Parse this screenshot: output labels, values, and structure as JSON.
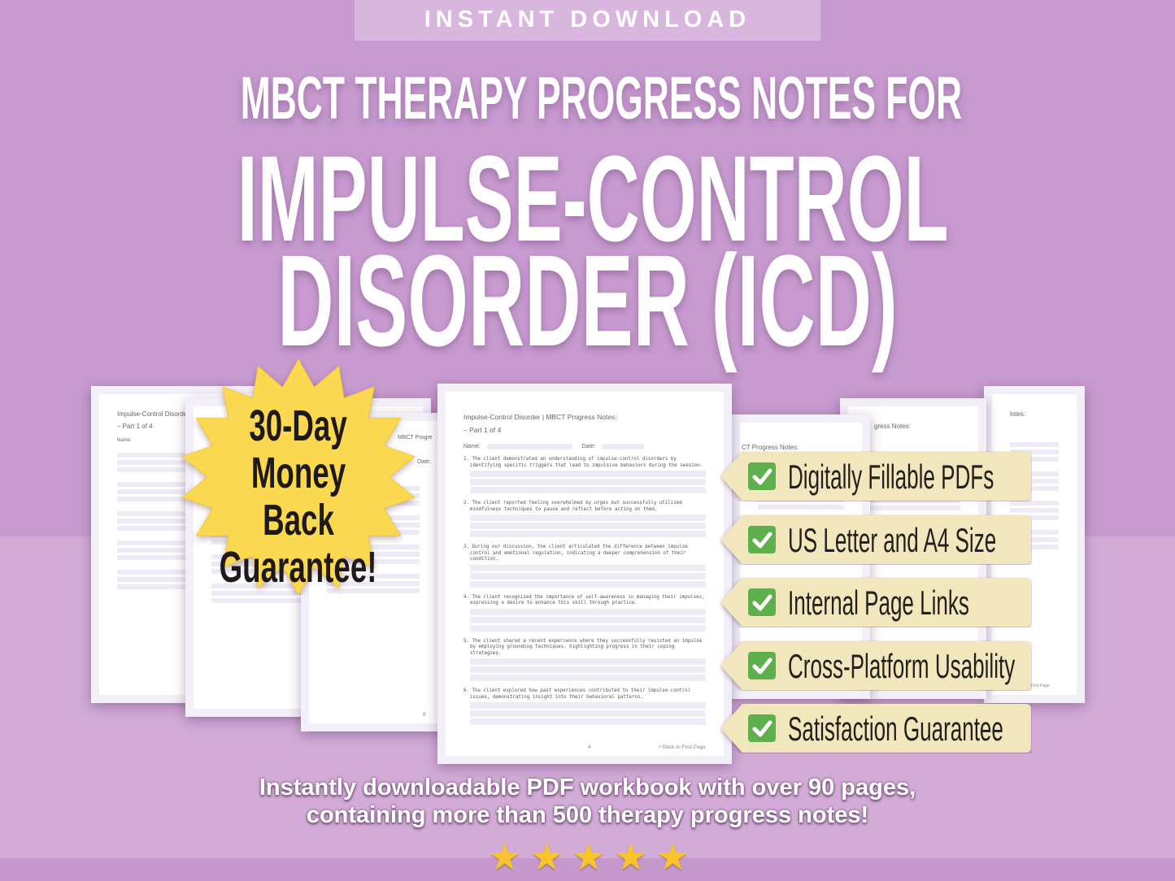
{
  "banner": "INSTANT DOWNLOAD",
  "title": {
    "line1": "MBCT THERAPY PROGRESS NOTES FOR",
    "line2": "IMPULSE-CONTROL",
    "line3": "DISORDER (ICD)"
  },
  "guarantee": {
    "line1": "30-Day",
    "line2": "Money Back",
    "line3": "Guarantee!"
  },
  "back_pages": {
    "left_header": "Impulse-Control Disorde",
    "left_part": "– Part 1 of 4",
    "left_name": "Name:",
    "second_header": "MBCT Progre",
    "second_date": "Date:",
    "right_header": "gress Notes:",
    "far_right_header": "lotes:",
    "mid_right_header": "CT Progress Notes:",
    "page_number": "8",
    "back_link": "Back to First Page"
  },
  "center_page": {
    "header": "Impulse-Control Disorder | MBCT Progress Notes:",
    "part": "– Part 1 of 4",
    "name_label": "Name:",
    "date_label": "Date:",
    "notes": [
      "1. The client demonstrated an understanding of impulse-control disorders by identifying specific triggers that lead to impulsive behaviors during the session.",
      "2. The client reported feeling overwhelmed by urges but successfully utilized mindfulness techniques to pause and reflect before acting on them.",
      "3. During our discussion, the client articulated the difference between impulse control and emotional regulation, indicating a deeper comprehension of their condition.",
      "4. The client recognized the importance of self-awareness in managing their impulses, expressing a desire to enhance this skill through practice.",
      "5. The client shared a recent experience where they successfully resisted an impulse by employing grounding techniques, highlighting progress in their coping strategies.",
      "6. The client explored how past experiences contributed to their impulse-control issues, demonstrating insight into their behavioral patterns."
    ],
    "page_number": "4",
    "back_link": "+ Back to First Page"
  },
  "features": [
    {
      "label": "Digitally Fillable PDFs",
      "icon": "checkmark-icon"
    },
    {
      "label": "US Letter and A4 Size",
      "icon": "checkmark-icon"
    },
    {
      "label": "Internal Page Links",
      "icon": "checkmark-icon"
    },
    {
      "label": "Cross-Platform Usability",
      "icon": "checkmark-icon"
    },
    {
      "label": "Satisfaction Guarantee",
      "icon": "checkmark-icon"
    }
  ],
  "bottom": {
    "line1": "Instantly downloadable PDF workbook with over 90 pages,",
    "line2": "containing more than 500 therapy progress notes!"
  },
  "rating": {
    "stars": 5,
    "max": 5
  },
  "colors": {
    "background": "#c79bcf",
    "tag": "#f1e6bc",
    "check": "#5db04b",
    "burst": "#fad84f",
    "star": "#f7c52b"
  }
}
